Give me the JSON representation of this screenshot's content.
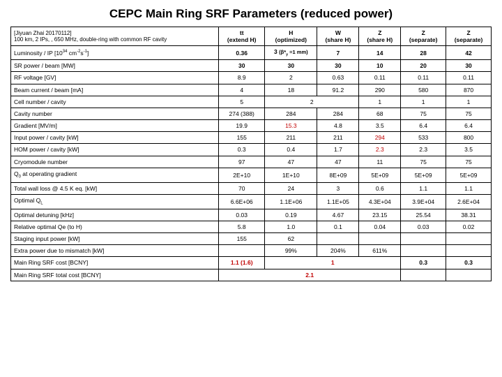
{
  "title": "CEPC Main Ring SRF Parameters (reduced power)",
  "header_note": "[Jiyuan Zhai 20170112]\n100 km, 2 IPs, , 650 MHz, double-ring with common RF cavity",
  "columns": [
    {
      "l1": "tt",
      "l2": "(extend H)"
    },
    {
      "l1": "H",
      "l2": "(optimized)"
    },
    {
      "l1": "W",
      "l2": "(share H)"
    },
    {
      "l1": "Z",
      "l2": "(share H)"
    },
    {
      "l1": "Z",
      "l2": "(separate)"
    },
    {
      "l1": "Z",
      "l2": "(separate)"
    }
  ],
  "rows": [
    {
      "label": "Luminosity / IP [10³⁴ cm⁻²s⁻¹]",
      "bold": true,
      "cells": [
        "0.36",
        "3 (β*_y =1 mm)",
        "7",
        "14",
        "28",
        "42"
      ]
    },
    {
      "label": "SR power / beam [MW]",
      "bold": true,
      "cells": [
        "30",
        "30",
        "30",
        "10",
        "20",
        "30"
      ]
    },
    {
      "label": "RF voltage [GV]",
      "cells": [
        "8.9",
        "2",
        "0.63",
        "0.11",
        "0.11",
        "0.11"
      ]
    },
    {
      "label": "Beam current / beam [mA]",
      "cells": [
        "4",
        "18",
        "91.2",
        "290",
        "580",
        "870"
      ]
    },
    {
      "label": "Cell number / cavity",
      "cells": [
        "5",
        {
          "span": 2,
          "v": "2"
        },
        "1",
        "1",
        "1"
      ]
    },
    {
      "label": "Cavity number",
      "cells": [
        "274 (388)",
        "284",
        "284",
        "68",
        "75",
        "75"
      ]
    },
    {
      "label": "Gradient [MV/m]",
      "cells": [
        "19.9",
        {
          "v": "15.3",
          "red": true
        },
        "4.8",
        "3.5",
        "6.4",
        "6.4"
      ]
    },
    {
      "label": "Input power / cavity [kW]",
      "cells": [
        "155",
        "211",
        "211",
        {
          "v": "294",
          "red": true
        },
        "533",
        "800"
      ]
    },
    {
      "label": "HOM power / cavity [kW]",
      "cells": [
        "0.3",
        "0.4",
        "1.7",
        {
          "v": "2.3",
          "red": true
        },
        "2.3",
        "3.5"
      ]
    },
    {
      "label": "Cryomodule number",
      "cells": [
        "97",
        "47",
        "47",
        "11",
        "75",
        "75"
      ]
    },
    {
      "label": "Q₀ at operating gradient",
      "cells": [
        "2E+10",
        "1E+10",
        "8E+09",
        "5E+09",
        "5E+09",
        "5E+09"
      ]
    },
    {
      "label": "Total wall loss @ 4.5 K eq. [kW]",
      "cells": [
        "70",
        "24",
        "3",
        "0.6",
        "1.1",
        "1.1"
      ]
    },
    {
      "label": "Optimal Q_L",
      "cells": [
        "6.6E+06",
        "1.1E+06",
        "1.1E+05",
        "4.3E+04",
        "3.9E+04",
        "2.6E+04"
      ]
    },
    {
      "label": "Optimal detuning [kHz]",
      "cells": [
        "0.03",
        "0.19",
        "4.67",
        "23.15",
        "25.54",
        "38.31"
      ]
    },
    {
      "label": "Relative optimal Qe (to H)",
      "cells": [
        "5.8",
        "1.0",
        "0.1",
        "0.04",
        "0.03",
        "0.02"
      ]
    },
    {
      "label": "Staging input power [kW]",
      "cells": [
        "155",
        "62",
        "",
        "",
        "",
        ""
      ]
    },
    {
      "label": "Extra power due to mismatch [kW]",
      "cells": [
        "",
        "99%",
        "204%",
        "611%",
        "",
        ""
      ]
    },
    {
      "label": "Main Ring SRF cost [BCNY]",
      "bold": true,
      "cells": [
        {
          "v": "1.1 (1.6)",
          "red": true
        },
        {
          "span": 3,
          "v": "1",
          "red": true
        },
        "0.3",
        "0.3"
      ]
    },
    {
      "label": "Main Ring SRF total cost [BCNY]",
      "bold": true,
      "cells": [
        {
          "span": 4,
          "v": "2.1",
          "red": true
        },
        "",
        ""
      ]
    }
  ]
}
